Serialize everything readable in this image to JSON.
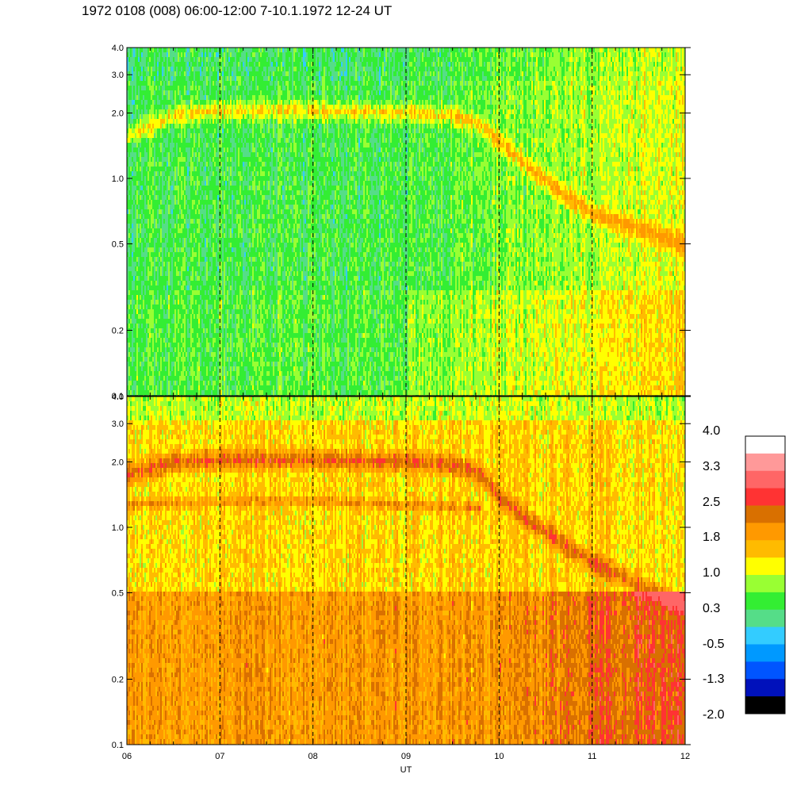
{
  "title": "1972 0108 (008) 06:00-12:00 7-10.1.1972  12-24 UT",
  "chart_data": {
    "type": "heatmap",
    "xlabel": "UT",
    "x_ticks": [
      "06",
      "07",
      "08",
      "09",
      "10",
      "11",
      "12"
    ],
    "xlim": [
      6,
      12
    ],
    "y_scale": "log",
    "ylim": [
      0.1,
      4.0
    ],
    "y_ticks": [
      "0.1",
      "0.2",
      "0.5",
      "1.0",
      "2.0",
      "3.0",
      "4.0"
    ],
    "y_tick_values": [
      0.1,
      0.2,
      0.5,
      1.0,
      2.0,
      3.0,
      4.0
    ],
    "vertical_dashed_lines_at": [
      7,
      8,
      9,
      10,
      11
    ],
    "panels": [
      {
        "name": "upper",
        "description_level": "green/cyan background",
        "ridge_trace": {
          "x": [
            6.0,
            6.5,
            7.0,
            8.0,
            9.0,
            9.5,
            9.8,
            10.0,
            10.3,
            10.7,
            11.0,
            11.5,
            12.0
          ],
          "y": [
            1.6,
            2.0,
            2.1,
            2.1,
            2.05,
            2.0,
            1.8,
            1.5,
            1.15,
            0.85,
            0.7,
            0.6,
            0.5
          ]
        }
      },
      {
        "name": "lower",
        "description_level": "yellow/orange background",
        "ridge_trace": {
          "x": [
            6.0,
            6.5,
            7.0,
            8.0,
            9.0,
            9.5,
            9.8,
            10.0,
            10.3,
            10.7,
            11.0,
            11.5,
            12.0
          ],
          "y": [
            1.8,
            2.05,
            2.1,
            2.1,
            2.05,
            2.0,
            1.8,
            1.4,
            1.1,
            0.85,
            0.7,
            0.55,
            0.45
          ]
        },
        "secondary_band": {
          "x": [
            6.0,
            7.0,
            8.0,
            9.0,
            9.8
          ],
          "y": [
            1.3,
            1.35,
            1.35,
            1.3,
            1.25
          ]
        }
      }
    ],
    "colorbar": {
      "labels": [
        "4.0",
        "3.3",
        "2.5",
        "1.8",
        "1.0",
        "0.3",
        "-0.5",
        "-1.3",
        "-2.0"
      ],
      "colors": [
        "#ffffff",
        "#ff9999",
        "#ff6666",
        "#ff3333",
        "#d97000",
        "#ff9900",
        "#ffbb00",
        "#ffff00",
        "#99ff33",
        "#33ee33",
        "#55dd88",
        "#33ccff",
        "#0099ff",
        "#0055ff",
        "#0011bb",
        "#000000"
      ]
    }
  }
}
